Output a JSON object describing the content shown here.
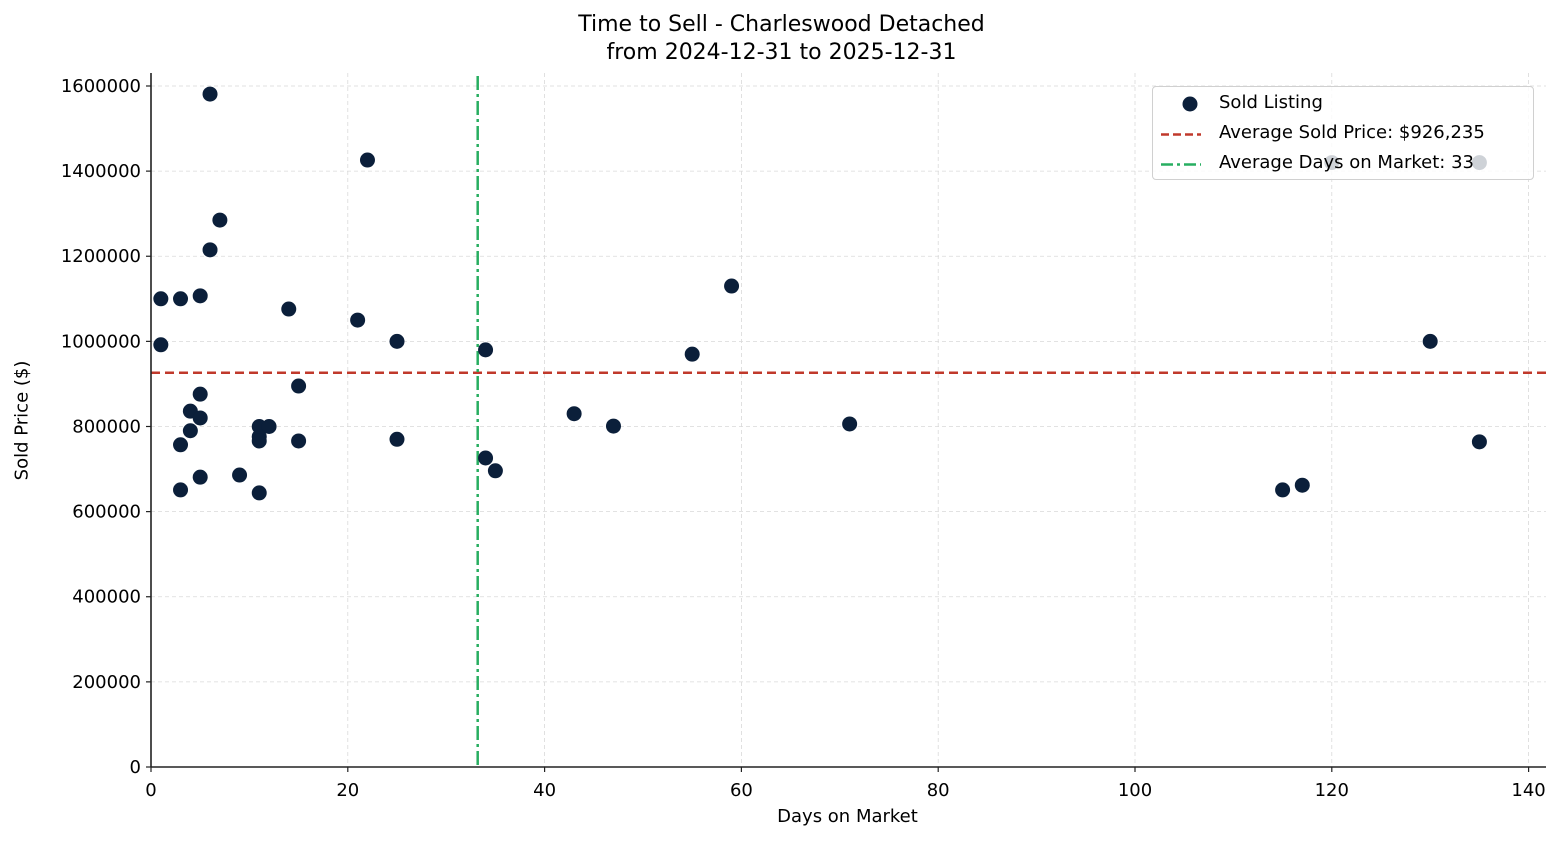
{
  "chart_data": {
    "type": "scatter",
    "title": "Time to Sell - Charleswood Detached",
    "subtitle": "from 2024-12-31 to 2025-12-31",
    "xlabel": "Days on Market",
    "ylabel": "Sold Price ($)",
    "xlim": [
      0,
      141.8
    ],
    "ylim": [
      0,
      1630000
    ],
    "x_ticks": [
      0,
      20,
      40,
      60,
      80,
      100,
      120,
      140
    ],
    "y_ticks": [
      0,
      200000,
      400000,
      600000,
      800000,
      1000000,
      1200000,
      1400000,
      1600000
    ],
    "grid": true,
    "legend_position": "upper right",
    "legend": [
      {
        "label": "Sold Listing",
        "type": "marker",
        "color": "#0b1f3a"
      },
      {
        "label": "Average Sold Price: $926,235",
        "type": "dashed-line",
        "color": "#c0392b"
      },
      {
        "label": "Average Days on Market: 33",
        "type": "dashdot-line",
        "color": "#27ae60"
      }
    ],
    "reference_lines": {
      "average_sold_price": 926235,
      "average_days_on_market": 33.2
    },
    "series": [
      {
        "name": "Sold Listing",
        "color": "#0b1f3a",
        "points": [
          [
            1,
            1100000
          ],
          [
            1,
            992000
          ],
          [
            3,
            1100000
          ],
          [
            3,
            757000
          ],
          [
            3,
            651000
          ],
          [
            4,
            836000
          ],
          [
            4,
            790000
          ],
          [
            5,
            1107000
          ],
          [
            5,
            876000
          ],
          [
            5,
            820000
          ],
          [
            5,
            681000
          ],
          [
            6,
            1581000
          ],
          [
            6,
            1215000
          ],
          [
            7,
            1285000
          ],
          [
            9,
            686000
          ],
          [
            11,
            800000
          ],
          [
            11,
            776000
          ],
          [
            11,
            766000
          ],
          [
            11,
            644000
          ],
          [
            12,
            800000
          ],
          [
            14,
            1076000
          ],
          [
            15,
            895000
          ],
          [
            15,
            766000
          ],
          [
            21,
            1050000
          ],
          [
            22,
            1426000
          ],
          [
            25,
            1000000
          ],
          [
            25,
            770000
          ],
          [
            34,
            980000
          ],
          [
            34,
            726000
          ],
          [
            35,
            696000
          ],
          [
            43,
            830000
          ],
          [
            47,
            801000
          ],
          [
            55,
            970000
          ],
          [
            59,
            1130000
          ],
          [
            71,
            806000
          ],
          [
            115,
            651000
          ],
          [
            117,
            662000
          ],
          [
            120,
            1420000
          ],
          [
            130,
            1000000
          ],
          [
            135,
            764000
          ],
          [
            135,
            1420000
          ]
        ]
      }
    ]
  },
  "colors": {
    "marker": "#0b1f3a",
    "avg_price_line": "#c0392b",
    "avg_days_line": "#27ae60",
    "grid": "#d9d9d9",
    "axis": "#222222"
  }
}
